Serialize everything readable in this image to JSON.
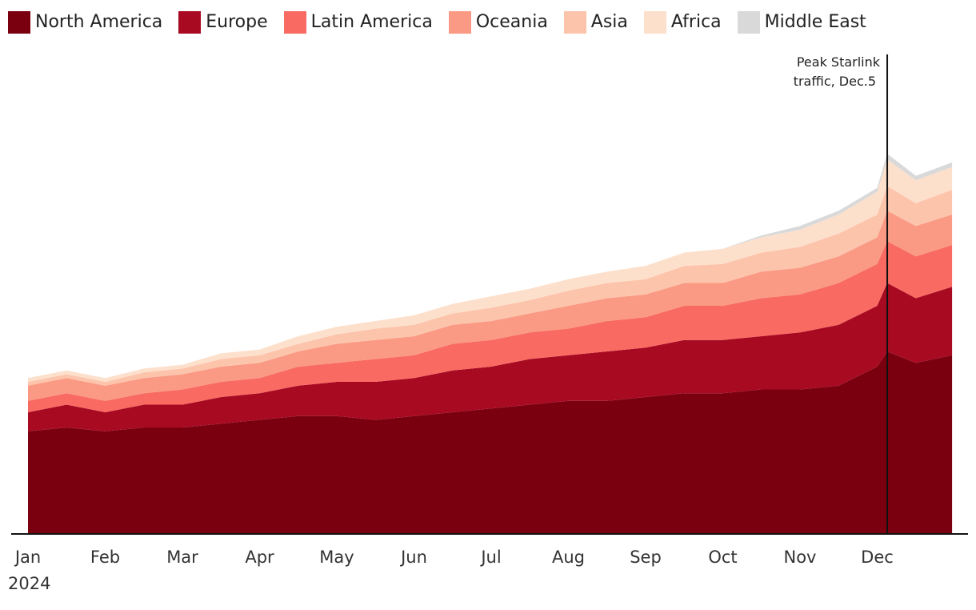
{
  "chart_data": {
    "type": "area",
    "stacked": true,
    "x_axis": {
      "tick_labels": [
        "Jan",
        "Feb",
        "Mar",
        "Apr",
        "May",
        "Jun",
        "Jul",
        "Aug",
        "Sep",
        "Oct",
        "Nov",
        "Dec"
      ],
      "year_label": "2024"
    },
    "y_axis": {
      "labels": "none",
      "grid": false
    },
    "legend_placement": "top-left",
    "annotation": {
      "text_line1": "Peak Starlink",
      "text_line2": "traffic, Dec.5",
      "x_month": 11.13
    },
    "x_months": [
      0,
      0.5,
      1,
      1.5,
      2,
      2.5,
      3,
      3.5,
      4,
      4.5,
      5,
      5.5,
      6,
      6.5,
      7,
      7.5,
      8,
      8.5,
      9,
      9.5,
      10,
      10.5,
      11,
      11.13,
      11.5,
      11.97
    ],
    "series": [
      {
        "name": "North America",
        "color": "#7a0010",
        "values": [
          27,
          28,
          27,
          28,
          28,
          29,
          30,
          31,
          31,
          30,
          31,
          32,
          33,
          34,
          35,
          35,
          36,
          37,
          37,
          38,
          38,
          39,
          44,
          48,
          45,
          47
        ]
      },
      {
        "name": "Europe",
        "color": "#a80a22",
        "values": [
          5,
          6,
          5,
          6,
          6,
          7,
          7,
          8,
          9,
          10,
          10,
          11,
          11,
          12,
          12,
          13,
          13,
          14,
          14,
          14,
          15,
          16,
          16,
          18,
          17,
          18
        ]
      },
      {
        "name": "Latin America",
        "color": "#f86a62",
        "values": [
          3,
          3,
          3,
          3,
          4,
          4,
          4,
          5,
          5,
          6,
          6,
          7,
          7,
          7,
          7,
          8,
          8,
          9,
          9,
          10,
          10,
          11,
          11,
          11,
          11,
          11
        ]
      },
      {
        "name": "Oceania",
        "color": "#fa9a84",
        "values": [
          4,
          4,
          4,
          4,
          4,
          4,
          4,
          4,
          5,
          5,
          5,
          5,
          5,
          5,
          6,
          6,
          6,
          6,
          6,
          7,
          7,
          7,
          7,
          8,
          8,
          8
        ]
      },
      {
        "name": "Asia",
        "color": "#fdc4ac",
        "values": [
          1,
          1,
          1,
          1.5,
          1.5,
          2,
          2,
          2,
          2.5,
          3,
          3,
          3,
          3.5,
          3.5,
          4,
          4,
          4,
          4.5,
          5,
          5,
          5.5,
          6,
          6,
          6.5,
          6,
          6.5
        ]
      },
      {
        "name": "Africa",
        "color": "#fde0cc",
        "values": [
          1,
          1,
          1,
          1,
          1,
          1.5,
          1.5,
          2,
          2,
          2,
          2.5,
          2.5,
          3,
          3,
          3,
          3,
          3.5,
          3.5,
          4,
          4,
          4.5,
          5,
          6,
          7,
          6,
          6
        ]
      },
      {
        "name": "Middle East",
        "color": "#d9d9d9",
        "values": [
          0,
          0,
          0,
          0,
          0,
          0,
          0,
          0,
          0,
          0,
          0,
          0,
          0,
          0,
          0,
          0,
          0,
          0,
          0,
          0.5,
          1,
          1,
          1,
          1.5,
          1.2,
          1.2
        ]
      }
    ]
  }
}
